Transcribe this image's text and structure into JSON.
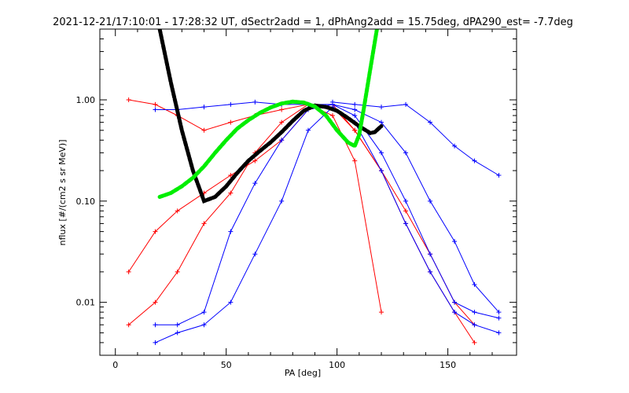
{
  "chart_data": {
    "type": "line",
    "title": "2021-12-21/17:10:01 - 17:28:32 UT, dSectr2add = 1, dPhAng2add = 15.75deg, dPA290_est=  -7.7deg",
    "xlabel": "PA [deg]",
    "ylabel": "nflux [#/(cm2 s sr MeV)]",
    "xlim": [
      -7,
      181
    ],
    "ylim": [
      0.003,
      5.0
    ],
    "yscale": "log",
    "grid": false,
    "xticks": [
      0,
      50,
      100,
      150
    ],
    "xtick_labels": [
      "0",
      "50",
      "100",
      "150"
    ],
    "yticks": [
      0.01,
      0.1,
      1.0
    ],
    "ytick_labels": [
      "0.01",
      "0.10",
      "1.00"
    ],
    "colors": {
      "red_family": "#ff0000",
      "blue_family": "#0000ff",
      "fit_black": "#000000",
      "fit_green": "#00ee00"
    },
    "series": [
      {
        "color": "red",
        "x": [
          6,
          18,
          28,
          40,
          52,
          63,
          75,
          87,
          98,
          108,
          120,
          131,
          142,
          153,
          162
        ],
        "y": [
          0.02,
          0.05,
          0.08,
          0.12,
          0.18,
          0.25,
          0.4,
          0.8,
          0.9,
          0.5,
          0.2,
          0.08,
          0.03,
          0.01,
          0.006
        ]
      },
      {
        "color": "red",
        "x": [
          6,
          18,
          28,
          40,
          52,
          63,
          75,
          87,
          98,
          108,
          120,
          131,
          142,
          153,
          162
        ],
        "y": [
          1.0,
          0.9,
          0.7,
          0.5,
          0.6,
          0.7,
          0.8,
          0.9,
          0.85,
          0.5,
          0.2,
          0.06,
          0.02,
          0.008,
          0.004
        ]
      },
      {
        "color": "red",
        "x": [
          6,
          18,
          28,
          40,
          52,
          63,
          75,
          87,
          98,
          108,
          120
        ],
        "y": [
          0.006,
          0.01,
          0.02,
          0.06,
          0.12,
          0.3,
          0.6,
          0.9,
          0.7,
          0.25,
          0.008
        ]
      },
      {
        "color": "blue",
        "x": [
          18,
          28,
          40,
          52,
          63,
          75,
          87,
          98,
          108,
          120,
          131,
          142,
          153,
          162,
          173
        ],
        "y": [
          0.8,
          0.8,
          0.85,
          0.9,
          0.95,
          0.9,
          0.9,
          0.9,
          0.8,
          0.6,
          0.3,
          0.1,
          0.04,
          0.015,
          0.008
        ]
      },
      {
        "color": "blue",
        "x": [
          18,
          28,
          40,
          52,
          63,
          75,
          87,
          98,
          108,
          120,
          131,
          142,
          153,
          162,
          173
        ],
        "y": [
          0.006,
          0.006,
          0.008,
          0.05,
          0.15,
          0.4,
          0.8,
          0.9,
          0.7,
          0.3,
          0.1,
          0.03,
          0.01,
          0.008,
          0.007
        ]
      },
      {
        "color": "blue",
        "x": [
          98,
          108,
          120,
          131,
          142,
          153,
          162,
          173
        ],
        "y": [
          0.95,
          0.9,
          0.85,
          0.9,
          0.6,
          0.35,
          0.25,
          0.18
        ]
      },
      {
        "color": "blue",
        "x": [
          18,
          28,
          40,
          52,
          63,
          75,
          87,
          98,
          108,
          120,
          131,
          142,
          153,
          162,
          173
        ],
        "y": [
          0.004,
          0.005,
          0.006,
          0.01,
          0.03,
          0.1,
          0.5,
          0.85,
          0.6,
          0.2,
          0.06,
          0.02,
          0.008,
          0.006,
          0.005
        ]
      },
      {
        "color": "black",
        "x": [
          20,
          25,
          30,
          35,
          40,
          45,
          50,
          55,
          60,
          65,
          70,
          75,
          80,
          85,
          90,
          95,
          100,
          105,
          110,
          115,
          117,
          120
        ],
        "y": [
          5.0,
          1.5,
          0.5,
          0.2,
          0.1,
          0.11,
          0.14,
          0.19,
          0.25,
          0.31,
          0.38,
          0.48,
          0.62,
          0.78,
          0.88,
          0.85,
          0.78,
          0.66,
          0.55,
          0.47,
          0.48,
          0.55
        ]
      },
      {
        "color": "green",
        "x": [
          20,
          25,
          30,
          35,
          40,
          45,
          50,
          55,
          60,
          65,
          70,
          75,
          80,
          85,
          90,
          95,
          100,
          105,
          108,
          110,
          112,
          115,
          118
        ],
        "y": [
          0.11,
          0.12,
          0.14,
          0.17,
          0.22,
          0.3,
          0.4,
          0.52,
          0.63,
          0.74,
          0.84,
          0.92,
          0.96,
          0.94,
          0.86,
          0.7,
          0.5,
          0.38,
          0.35,
          0.45,
          0.8,
          2.0,
          5.0
        ]
      }
    ]
  }
}
